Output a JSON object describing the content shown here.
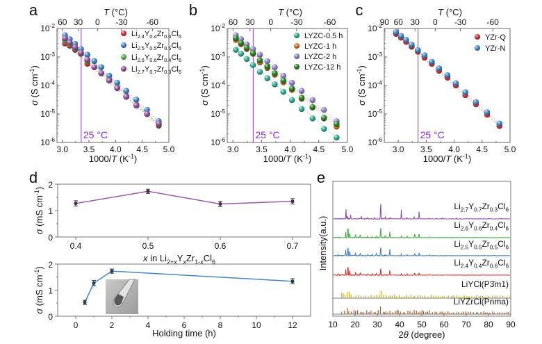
{
  "chart_data": [
    {
      "panel": "a",
      "type": "scatter",
      "xlabel": "1000/T (K-1)",
      "ylabel": "σ (S cm-1)",
      "top_xlabel": "T (°C)",
      "top_ticks": [
        "60",
        "30",
        "0",
        "-30",
        "-60"
      ],
      "top_tick_values_C": [
        60,
        30,
        0,
        -30,
        -60
      ],
      "xlim": [
        2.9,
        5.0
      ],
      "ylim": [
        1e-06,
        0.01
      ],
      "yscale": "log",
      "xticks": [
        "3.0",
        "3.5",
        "4.0",
        "4.5",
        "5.0"
      ],
      "yticks": [
        "10-6",
        "10-5",
        "10-4",
        "10-3",
        "10-2"
      ],
      "annotation": "25 °C",
      "annotation_x": 3.354,
      "legend_position": "top-right",
      "x": [
        3.05,
        3.14,
        3.24,
        3.35,
        3.47,
        3.6,
        3.73,
        3.88,
        4.03,
        4.2,
        4.39,
        4.59,
        4.81
      ],
      "series": [
        {
          "name": "Li2.4Y0.4Zr0.6Cl6",
          "sub": [
            "Li",
            "2.4",
            "Y",
            "0.4",
            "Zr",
            "0.6",
            "Cl",
            "6"
          ],
          "color": "#e03a3a",
          "values": [
            0.003,
            0.0025,
            0.0018,
            0.0013,
            0.00058,
            0.00044,
            0.00027,
            0.00016,
            8.5e-05,
            4.3e-05,
            2.1e-05,
            1e-05,
            3.9e-06
          ]
        },
        {
          "name": "Li2.5Y0.5Zr0.5Cl6",
          "sub": [
            "Li",
            "2.5",
            "Y",
            "0.5",
            "Zr",
            "0.5",
            "Cl",
            "6"
          ],
          "color": "#4a8fcf",
          "values": [
            0.0058,
            0.0042,
            0.0029,
            0.0019,
            0.0012,
            0.00072,
            0.00044,
            0.00022,
            0.000125,
            6.5e-05,
            3.2e-05,
            1.4e-05,
            5.6e-06
          ]
        },
        {
          "name": "Li2.6Y0.6Zr0.4Cl6",
          "sub": [
            "Li",
            "2.6",
            "Y",
            "0.6",
            "Zr",
            "0.4",
            "Cl",
            "6"
          ],
          "color": "#5fb75a",
          "values": [
            0.0038,
            0.0028,
            0.002,
            0.00135,
            0.00072,
            0.00044,
            0.00027,
            0.00015,
            8.2e-05,
            4.1e-05,
            2e-05,
            1e-05,
            4.3e-06
          ]
        },
        {
          "name": "Li2.7Y0.7Zr0.3Cl6",
          "sub": [
            "Li",
            "2.7",
            "Y",
            "0.7",
            "Zr",
            "0.3",
            "Cl",
            "6"
          ],
          "color": "#9b5aa8",
          "values": [
            0.0045,
            0.0032,
            0.0022,
            0.0014,
            0.0008,
            0.00044,
            0.00027,
            0.00015,
            8e-05,
            4e-05,
            2e-05,
            1e-05,
            4.6e-06
          ]
        }
      ]
    },
    {
      "panel": "b",
      "type": "scatter",
      "xlabel": "1000/T (K-1)",
      "ylabel": "σ (S cm-1)",
      "top_xlabel": "T (°C)",
      "top_ticks": [
        "60",
        "30",
        "0",
        "-30",
        "-60"
      ],
      "top_tick_values_C": [
        60,
        30,
        0,
        -30,
        -60
      ],
      "xlim": [
        2.9,
        5.0
      ],
      "ylim": [
        1e-06,
        0.01
      ],
      "yscale": "log",
      "xticks": [
        "3.0",
        "3.5",
        "4.0",
        "4.5",
        "5.0"
      ],
      "yticks": [
        "10-6",
        "10-5",
        "10-4",
        "10-3",
        "10-2"
      ],
      "annotation": "25 °C",
      "annotation_x": 3.354,
      "legend_position": "top-right",
      "x": [
        3.05,
        3.14,
        3.24,
        3.35,
        3.47,
        3.6,
        3.73,
        3.88,
        4.03,
        4.2,
        4.39,
        4.59,
        4.81
      ],
      "series": [
        {
          "name": "LYZC-0.5 h",
          "color": "#3bb59a",
          "values": [
            0.0018,
            0.0013,
            0.00085,
            0.00052,
            0.0003,
            0.00018,
            0.00011,
            6e-05,
            3.1e-05,
            1.5e-05,
            7e-06,
            3e-06,
            1.5e-06
          ]
        },
        {
          "name": "LYZC-1 h",
          "color": "#e07a2a",
          "values": [
            0.004,
            0.0028,
            0.0019,
            0.0013,
            0.00065,
            0.00041,
            0.00024,
            0.00013,
            7e-05,
            3.4e-05,
            1.7e-05,
            7e-06,
            3.6e-06
          ]
        },
        {
          "name": "LYZC-2 h",
          "color": "#9a8cd0",
          "values": [
            0.0058,
            0.0042,
            0.0028,
            0.0019,
            0.0012,
            0.00072,
            0.00044,
            0.00022,
            0.000125,
            6.5e-05,
            3.1e-05,
            1.4e-05,
            5.6e-06
          ]
        },
        {
          "name": "LYZC-12 h",
          "color": "#2e8b2e",
          "values": [
            0.0046,
            0.0031,
            0.0021,
            0.00135,
            0.00076,
            0.00047,
            0.00027,
            0.00015,
            7.8e-05,
            3.7e-05,
            1.75e-05,
            7.2e-06,
            4.4e-06
          ]
        }
      ]
    },
    {
      "panel": "c",
      "type": "scatter",
      "xlabel": "1000/T (K-1)",
      "ylabel": "σ (S cm-1)",
      "top_xlabel": "T (°C)",
      "top_ticks": [
        "90",
        "60",
        "30",
        "0",
        "-30",
        "-60"
      ],
      "top_tick_values_C": [
        90,
        60,
        30,
        0,
        -30,
        -60
      ],
      "xlim": [
        2.75,
        5.0
      ],
      "ylim": [
        1e-06,
        0.01
      ],
      "yscale": "log",
      "xticks": [
        "3.0",
        "3.5",
        "4.0",
        "4.5",
        "5.0"
      ],
      "yticks": [
        "10-6",
        "10-5",
        "10-4",
        "10-3",
        "10-2"
      ],
      "annotation": "25 °C",
      "annotation_x": 3.354,
      "legend_position": "top-right",
      "x": [
        2.96,
        3.05,
        3.14,
        3.24,
        3.35,
        3.47,
        3.6,
        3.73,
        3.88,
        4.03,
        4.2,
        4.39,
        4.59,
        4.81
      ],
      "series": [
        {
          "name": "YZr-Q",
          "color": "#e03a3a",
          "values": [
            0.0065,
            0.0048,
            0.0034,
            0.0023,
            0.00155,
            0.00095,
            0.00058,
            0.00033,
            0.00019,
            0.0001,
            4.6e-05,
            2.2e-05,
            9.5e-06,
            3.8e-06
          ]
        },
        {
          "name": "YZr-N",
          "color": "#4a8fcf",
          "values": [
            0.0075,
            0.0055,
            0.004,
            0.0027,
            0.00175,
            0.00115,
            0.00068,
            0.0004,
            0.00023,
            0.00012,
            5.8e-05,
            2.6e-05,
            1.15e-05,
            4.6e-06
          ]
        }
      ]
    },
    {
      "panel": "d-top",
      "type": "line",
      "xlabel": "x in Li2+xYxZr1-xCl6",
      "ylabel": "σ (mS cm-1)",
      "xlim": [
        0.375,
        0.725
      ],
      "ylim": [
        0,
        2
      ],
      "xticks": [
        "0.4",
        "0.5",
        "0.6",
        "0.7"
      ],
      "yticks": [
        "0",
        "1",
        "2"
      ],
      "x": [
        0.4,
        0.5,
        0.6,
        0.7
      ],
      "values": [
        1.27,
        1.73,
        1.25,
        1.35
      ],
      "errors": [
        0.1,
        0.08,
        0.1,
        0.1
      ],
      "color": "#9b5aa8"
    },
    {
      "panel": "d-bottom",
      "type": "line",
      "xlabel": "Holding time (h)",
      "ylabel": "σ (mS cm-1)",
      "xlim": [
        -1,
        13
      ],
      "ylim": [
        0,
        2
      ],
      "xticks": [
        "0",
        "2",
        "4",
        "6",
        "8",
        "10",
        "12"
      ],
      "yticks": [
        "0",
        "1",
        "2"
      ],
      "x": [
        0.5,
        1,
        2,
        12
      ],
      "values": [
        0.53,
        1.27,
        1.73,
        1.34
      ],
      "errors": [
        0.08,
        0.1,
        0.08,
        0.1
      ],
      "color": "#4a86c0",
      "inset": "photo of sealed glass tube with powder"
    },
    {
      "panel": "e",
      "type": "line",
      "xlabel": "2θ (degree)",
      "ylabel": "Intensity(a.u.)",
      "xlim": [
        10,
        90
      ],
      "xticks": [
        "10",
        "20",
        "30",
        "40",
        "50",
        "60",
        "70",
        "80",
        "90"
      ],
      "series": [
        {
          "name": "Li2.7Y0.7Zr0.3Cl6",
          "sub": [
            "Li",
            "2.7",
            "Y",
            "0.7",
            "Zr",
            "0.3",
            "Cl",
            "6"
          ],
          "color": "#8e44ad",
          "peaks": [
            [
              15.9,
              1.0
            ],
            [
              16.5,
              0.3
            ],
            [
              18.0,
              0.4
            ],
            [
              22.8,
              0.25
            ],
            [
              25.6,
              0.1
            ],
            [
              28.7,
              0.1
            ],
            [
              31.5,
              1.8
            ],
            [
              33.6,
              0.2
            ],
            [
              35.7,
              0.15
            ],
            [
              40.8,
              0.9
            ],
            [
              43.3,
              0.1
            ],
            [
              46.6,
              0.2
            ],
            [
              48.8,
              0.8
            ],
            [
              53.2,
              0.1
            ],
            [
              59.2,
              0.1
            ],
            [
              65.5,
              0.08
            ],
            [
              80.2,
              0.06
            ],
            [
              86.0,
              0.05
            ]
          ]
        },
        {
          "name": "Li2.6Y0.6Zr0.4Cl6",
          "sub": [
            "Li",
            "2.6",
            "Y",
            "0.6",
            "Zr",
            "0.4",
            "Cl",
            "6"
          ],
          "color": "#3aa83a",
          "peaks": [
            [
              15.8,
              0.6
            ],
            [
              16.8,
              1.2
            ],
            [
              17.6,
              0.5
            ],
            [
              20.2,
              0.3
            ],
            [
              22.3,
              0.25
            ],
            [
              25.6,
              0.12
            ],
            [
              27.8,
              0.12
            ],
            [
              29.5,
              0.12
            ],
            [
              31.5,
              1.1
            ],
            [
              33.5,
              0.15
            ],
            [
              35.6,
              0.6
            ],
            [
              40.8,
              0.15
            ],
            [
              43.4,
              0.15
            ],
            [
              46.8,
              0.45
            ],
            [
              48.8,
              0.4
            ],
            [
              53.5,
              0.1
            ]
          ]
        },
        {
          "name": "Li2.5Y0.5Zr0.5Cl6",
          "sub": [
            "Li",
            "2.5",
            "Y",
            "0.5",
            "Zr",
            "0.5",
            "Cl",
            "6"
          ],
          "color": "#3a78bf",
          "peaks": [
            [
              12.3,
              0.1
            ],
            [
              15.8,
              0.55
            ],
            [
              16.8,
              1.0
            ],
            [
              17.6,
              0.5
            ],
            [
              20.2,
              0.3
            ],
            [
              22.3,
              0.25
            ],
            [
              25.8,
              0.12
            ],
            [
              27.8,
              0.12
            ],
            [
              29.5,
              0.2
            ],
            [
              31.5,
              1.0
            ],
            [
              33.5,
              0.1
            ],
            [
              35.6,
              0.65
            ],
            [
              40.8,
              0.2
            ],
            [
              43.4,
              0.12
            ],
            [
              46.8,
              0.25
            ],
            [
              48.8,
              0.3
            ],
            [
              53.5,
              0.1
            ],
            [
              82.5,
              0.05
            ]
          ]
        },
        {
          "name": "Li2.4Y0.4Zr0.6Cl6",
          "sub": [
            "Li",
            "2.4",
            "Y",
            "0.4",
            "Zr",
            "0.6",
            "Cl",
            "6"
          ],
          "color": "#d62b2b",
          "peaks": [
            [
              12.3,
              0.15
            ],
            [
              15.8,
              0.55
            ],
            [
              16.8,
              1.0
            ],
            [
              17.6,
              0.5
            ],
            [
              20.2,
              0.3
            ],
            [
              22.3,
              0.25
            ],
            [
              25.8,
              0.12
            ],
            [
              27.8,
              0.12
            ],
            [
              29.5,
              0.15
            ],
            [
              31.5,
              0.8
            ],
            [
              33.5,
              0.1
            ],
            [
              35.6,
              0.5
            ],
            [
              40.8,
              0.12
            ],
            [
              43.4,
              0.12
            ],
            [
              46.8,
              0.25
            ],
            [
              48.8,
              0.25
            ],
            [
              53.5,
              0.08
            ]
          ]
        }
      ],
      "references": [
        {
          "name": "LiYCl(P3̄m1)",
          "color": "#c9b02a"
        },
        {
          "name": "LiYZrCl(Pnma)",
          "color": "#b8551a"
        }
      ]
    }
  ],
  "panels": {
    "a": {
      "label": "a"
    },
    "b": {
      "label": "b"
    },
    "c": {
      "label": "c"
    },
    "d": {
      "label": "d"
    },
    "e": {
      "label": "e"
    }
  }
}
